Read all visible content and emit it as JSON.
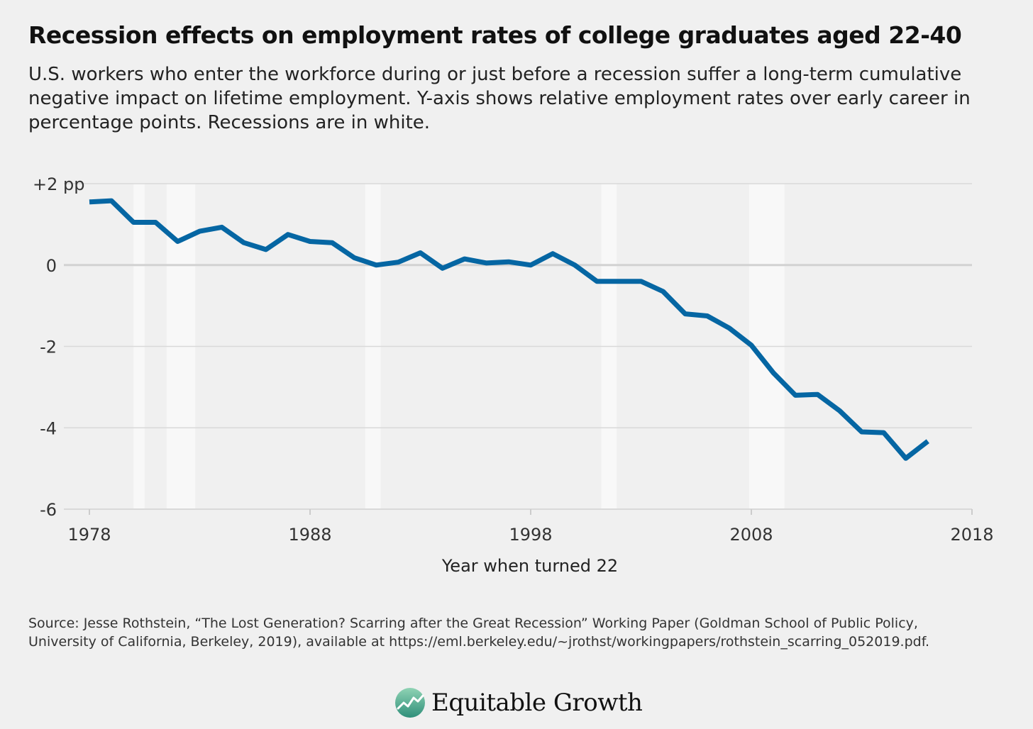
{
  "header": {
    "title": "Recession effects on employment rates of college graduates aged 22-40",
    "subtitle": "U.S. workers who enter the workforce during or just before a recession suffer a long-term cumulative negative impact on lifetime employment. Y-axis shows relative employment rates over early career in percentage points. Recessions are in white."
  },
  "chart_data": {
    "type": "line",
    "title": "Recession effects on employment rates of college graduates aged 22-40",
    "xlabel": "Year when turned 22",
    "ylabel": "",
    "xlim": [
      1978,
      2018
    ],
    "ylim": [
      -6,
      2
    ],
    "x_ticks": [
      1978,
      1988,
      1998,
      2008,
      2018
    ],
    "x_tick_labels": [
      "1978",
      "1988",
      "1998",
      "2008",
      "2018"
    ],
    "y_ticks": [
      2,
      0,
      -2,
      -4,
      -6
    ],
    "y_tick_labels": [
      "+2 pp",
      "0",
      "-2",
      "-4",
      "-6"
    ],
    "grid": true,
    "line_color": "#0566a3",
    "recession_color": "#f8f8f8",
    "recessions": [
      [
        1980.0,
        1980.5
      ],
      [
        1981.5,
        1982.8
      ],
      [
        1990.5,
        1991.2
      ],
      [
        2001.2,
        2001.9
      ],
      [
        2007.9,
        2009.5
      ]
    ],
    "series": [
      {
        "x": [
          1978,
          1979,
          1980,
          1981,
          1982,
          1983,
          1984,
          1985,
          1986,
          1987,
          1988,
          1989,
          1990,
          1991,
          1992,
          1993,
          1994,
          1995,
          1996,
          1997,
          1998,
          1999,
          2000,
          2001,
          2002,
          2003,
          2004,
          2005,
          2006,
          2007,
          2008,
          2009,
          2010,
          2011,
          2012,
          2013,
          2014,
          2015,
          2016
        ],
        "values": [
          1.55,
          1.58,
          1.05,
          1.05,
          0.58,
          0.83,
          0.93,
          0.55,
          0.38,
          0.75,
          0.58,
          0.55,
          0.18,
          0.0,
          0.07,
          0.3,
          -0.08,
          0.15,
          0.05,
          0.08,
          0.0,
          0.28,
          0.0,
          -0.4,
          -0.4,
          -0.4,
          -0.65,
          -1.2,
          -1.25,
          -1.55,
          -1.97,
          -2.65,
          -3.2,
          -3.18,
          -3.58,
          -4.1,
          -4.12,
          -4.75,
          -4.33
        ]
      }
    ]
  },
  "footer": {
    "source": "Source: Jesse Rothstein, “The Lost Generation? Scarring after the Great Recession” Working Paper (Goldman School of Public Policy, University of California, Berkeley, 2019), available at https://eml.berkeley.edu/~jrothst/workingpapers/rothstein_scarring_052019.pdf.",
    "logo_text": "Equitable Growth",
    "logo_icon": "chart-circle-icon"
  }
}
